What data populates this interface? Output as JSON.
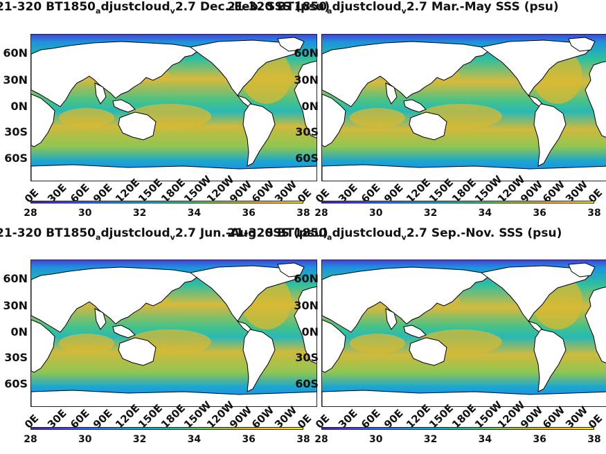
{
  "colors": {
    "land": "#ffffff",
    "colormap": [
      "#3e26a8",
      "#4743e9",
      "#2f6ffb",
      "#1b9adf",
      "#0bb5c3",
      "#38c194",
      "#8ac752",
      "#d8ba31",
      "#f9c734",
      "#f9f020"
    ]
  },
  "chart_data": [
    {
      "type": "heatmap",
      "title_parts": [
        "21-320 BT1850",
        "a",
        "djustcloud",
        "v",
        "2.7 Dec.-Feb. SSS (psu)"
      ],
      "x_tick_labels": [
        "0E",
        "30E",
        "60E",
        "90E",
        "120E",
        "150E",
        "180E",
        "150W",
        "120W",
        "90W",
        "60W",
        "30W",
        "0E"
      ],
      "y_tick_labels": [
        "60N",
        "30N",
        "0N",
        "30S",
        "60S"
      ],
      "colorbar_ticks": [
        "28",
        "30",
        "32",
        "34",
        "36",
        "38"
      ],
      "clim": [
        28,
        38
      ]
    },
    {
      "type": "heatmap",
      "title_parts": [
        "21-320 BT1850",
        "a",
        "djustcloud",
        "v",
        "2.7 Mar.-May SSS (psu)"
      ],
      "x_tick_labels": [
        "0E",
        "30E",
        "60E",
        "90E",
        "120E",
        "150E",
        "180E",
        "150W",
        "120W",
        "90W",
        "60W",
        "30W",
        "0E"
      ],
      "y_tick_labels": [
        "60N",
        "30N",
        "0N",
        "30S",
        "60S"
      ],
      "colorbar_ticks": [
        "28",
        "30",
        "32",
        "34",
        "36",
        "38"
      ],
      "clim": [
        28,
        38
      ]
    },
    {
      "type": "heatmap",
      "title_parts": [
        "21-320 BT1850",
        "a",
        "djustcloud",
        "v",
        "2.7 Jun.-Aug. SSS (psu)"
      ],
      "x_tick_labels": [
        "0E",
        "30E",
        "60E",
        "90E",
        "120E",
        "150E",
        "180E",
        "150W",
        "120W",
        "90W",
        "60W",
        "30W",
        "0E"
      ],
      "y_tick_labels": [
        "60N",
        "30N",
        "0N",
        "30S",
        "60S"
      ],
      "colorbar_ticks": [
        "28",
        "30",
        "32",
        "34",
        "36",
        "38"
      ],
      "clim": [
        28,
        38
      ]
    },
    {
      "type": "heatmap",
      "title_parts": [
        "21-320 BT1850",
        "a",
        "djustcloud",
        "v",
        "2.7 Sep.-Nov. SSS (psu)"
      ],
      "x_tick_labels": [
        "0E",
        "30E",
        "60E",
        "90E",
        "120E",
        "150E",
        "180E",
        "150W",
        "120W",
        "90W",
        "60W",
        "30W",
        "0E"
      ],
      "y_tick_labels": [
        "60N",
        "30N",
        "0N",
        "30S",
        "60S"
      ],
      "colorbar_ticks": [
        "28",
        "30",
        "32",
        "34",
        "36",
        "38"
      ],
      "clim": [
        28,
        38
      ]
    }
  ]
}
